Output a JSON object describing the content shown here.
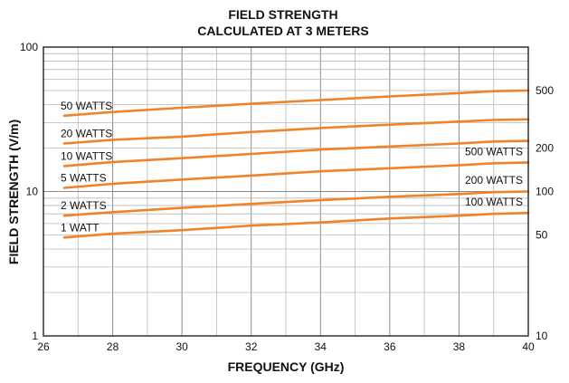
{
  "chart_data": {
    "type": "line",
    "title": "FIELD STRENGTH",
    "subtitle": "CALCULATED AT 3 METERS",
    "xlabel": "FREQUENCY (GHz)",
    "ylabel": "FIELD STRENGTH (V/m)",
    "xlim": [
      26,
      40
    ],
    "ylim": [
      1,
      100
    ],
    "y_scale": "log",
    "x_ticks": [
      "26",
      "28",
      "30",
      "32",
      "34",
      "36",
      "38",
      "40"
    ],
    "y_ticks": [
      "1",
      "10",
      "100"
    ],
    "right_axis_ticks": [
      {
        "label": "10",
        "value": 1.0
      },
      {
        "label": "50",
        "value": 5.0
      },
      {
        "label": "100",
        "value": 10.0
      },
      {
        "label": "200",
        "value": 20.0
      },
      {
        "label": "500",
        "value": 50.0
      }
    ],
    "grid": true,
    "line_color": "#f0822a",
    "x": [
      26.6,
      28,
      30,
      32,
      34,
      36,
      38,
      39,
      40
    ],
    "series": [
      {
        "name": "50 WATTS",
        "label_side": "left",
        "values": [
          33.5,
          35.5,
          38.0,
          40.5,
          43.0,
          45.5,
          48.0,
          49.5,
          50.0
        ]
      },
      {
        "name": "20 WATTS",
        "label_side": "left",
        "values": [
          21.5,
          22.8,
          24.0,
          25.8,
          27.5,
          29.0,
          30.5,
          31.3,
          31.6
        ]
      },
      {
        "name": "10 WATTS",
        "label_side": "left",
        "values": [
          15.0,
          16.0,
          17.0,
          18.2,
          19.5,
          20.5,
          21.5,
          22.2,
          22.4
        ]
      },
      {
        "name": "5 WATTS",
        "label_side": "left",
        "values": [
          10.6,
          11.3,
          12.1,
          12.9,
          13.8,
          14.5,
          15.2,
          15.7,
          15.9
        ]
      },
      {
        "name": "2 WATTS",
        "label_side": "left",
        "values": [
          6.8,
          7.2,
          7.7,
          8.2,
          8.7,
          9.2,
          9.6,
          9.9,
          10.0
        ]
      },
      {
        "name": "1 WATT",
        "label_side": "left",
        "values": [
          4.8,
          5.1,
          5.4,
          5.8,
          6.1,
          6.5,
          6.8,
          7.0,
          7.1
        ]
      }
    ],
    "right_labels": [
      {
        "text": "500 WATTS",
        "value": 17.8
      },
      {
        "text": "200 WATTS",
        "value": 11.3
      },
      {
        "text": "100 WATTS",
        "value": 8.0
      }
    ]
  }
}
